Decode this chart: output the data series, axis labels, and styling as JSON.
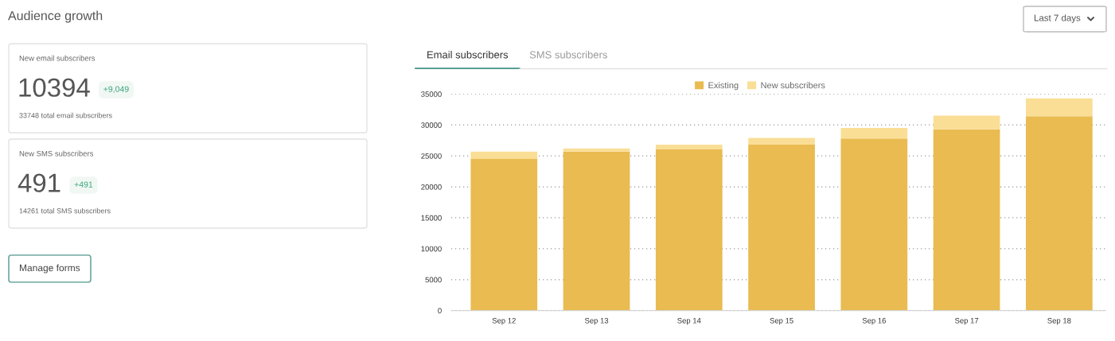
{
  "chart_data": [
    {
      "type": "other",
      "title": "Audience growth",
      "annotations": [
        "New email subscribers",
        "10394",
        "+9,049",
        "33748 total email subscribers",
        "New SMS subscribers",
        "491",
        "+491",
        "14261 total SMS subscribers",
        "Manage forms"
      ]
    },
    {
      "type": "bar",
      "stacked": true,
      "categories": [
        "Sep 12",
        "Sep 13",
        "Sep 14",
        "Sep 15",
        "Sep 16",
        "Sep 17",
        "Sep 18"
      ],
      "series": [
        {
          "name": "Existing",
          "color": "#e9bb50",
          "values": [
            24500,
            25700,
            26100,
            26800,
            27800,
            29300,
            31400
          ]
        },
        {
          "name": "New subscribers",
          "color": "#fade96",
          "values": [
            1200,
            500,
            700,
            1100,
            1700,
            2200,
            2900
          ]
        }
      ],
      "ylim": [
        0,
        35000
      ],
      "yticks": [
        0,
        5000,
        10000,
        15000,
        20000,
        25000,
        30000,
        35000
      ],
      "grid": "y",
      "legend": "top",
      "annotations": [
        "Email subscribers",
        "SMS subscribers",
        "Last 7 days"
      ]
    }
  ]
}
